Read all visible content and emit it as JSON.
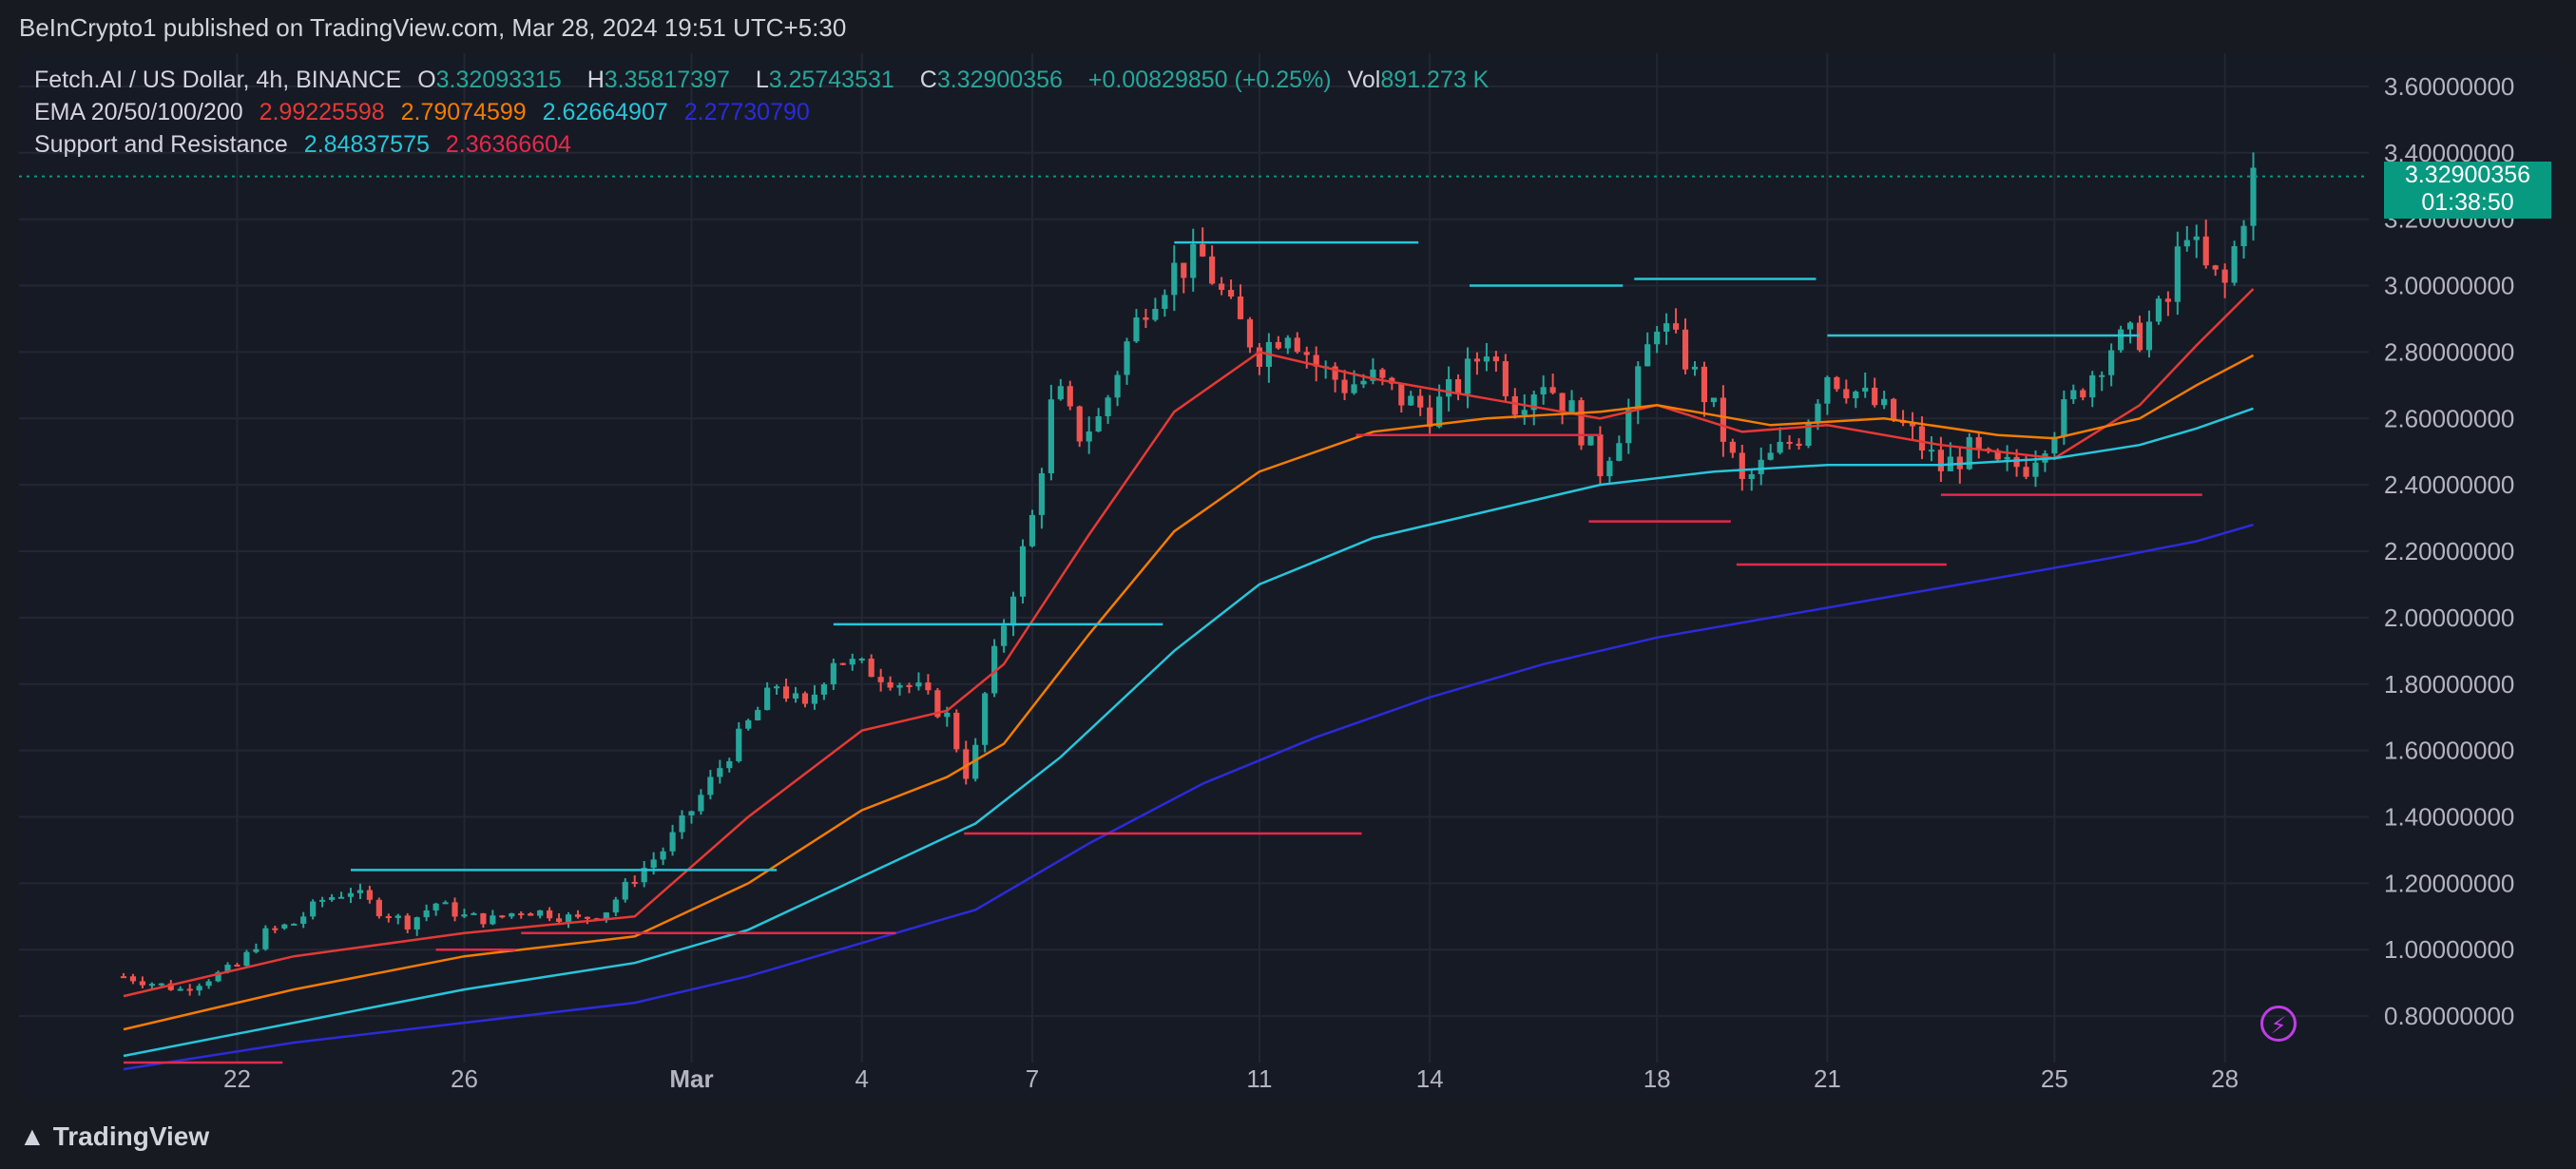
{
  "header": {
    "published": "BeInCrypto1 published on TradingView.com, Mar 28, 2024 19:51 UTC+5:30"
  },
  "legend": {
    "symbol": "Fetch.AI / US Dollar, 4h, BINANCE",
    "o_label": "O",
    "o": "3.32093315",
    "h_label": "H",
    "h": "3.35817397",
    "l_label": "L",
    "l": "3.25743531",
    "c_label": "C",
    "c": "3.32900356",
    "change": "+0.00829850 (+0.25%)",
    "vol_label": "Vol",
    "vol": "891.273 K",
    "ema_label": "EMA 20/50/100/200",
    "ema20": "2.99225598",
    "ema50": "2.79074599",
    "ema100": "2.62664907",
    "ema200": "2.27730790",
    "sr_label": "Support and Resistance",
    "sr1": "2.84837575",
    "sr2": "2.36366604"
  },
  "price_tag": {
    "price": "3.32900356",
    "countdown": "01:38:50"
  },
  "footer": {
    "brand": "TradingView"
  },
  "colors": {
    "up": "#26a69a",
    "down": "#ef5350",
    "ema20": "#e53935",
    "ema50": "#f57c00",
    "ema100": "#26c6da",
    "ema200": "#2b2bd9",
    "resistance": "#26c6da",
    "support": "#e5294a",
    "background": "#161a25"
  },
  "chart_data": {
    "type": "candlestick",
    "y_ticks": [
      "3.60000000",
      "3.40000000",
      "3.20000000",
      "3.00000000",
      "2.80000000",
      "2.60000000",
      "2.40000000",
      "2.20000000",
      "2.00000000",
      "1.80000000",
      "1.60000000",
      "1.40000000",
      "1.20000000",
      "1.00000000",
      "0.80000000"
    ],
    "ylim": [
      0.66,
      3.7
    ],
    "x_ticks": [
      {
        "label": "22",
        "day": -7
      },
      {
        "label": "26",
        "day": -3
      },
      {
        "label": "Mar",
        "day": 1
      },
      {
        "label": "4",
        "day": 4
      },
      {
        "label": "7",
        "day": 7
      },
      {
        "label": "11",
        "day": 11
      },
      {
        "label": "14",
        "day": 14
      },
      {
        "label": "18",
        "day": 18
      },
      {
        "label": "21",
        "day": 21
      },
      {
        "label": "25",
        "day": 25
      },
      {
        "label": "28",
        "day": 28
      }
    ],
    "xlim_days": [
      -9.0,
      30.5
    ],
    "last_day": 28.5,
    "close_path": [
      [
        -9.0,
        0.92
      ],
      [
        -8.0,
        0.88
      ],
      [
        -7.0,
        0.95
      ],
      [
        -6.5,
        1.05
      ],
      [
        -6.0,
        1.08
      ],
      [
        -5.5,
        1.15
      ],
      [
        -5.0,
        1.18
      ],
      [
        -4.5,
        1.12
      ],
      [
        -4.0,
        1.08
      ],
      [
        -3.5,
        1.14
      ],
      [
        -3.0,
        1.1
      ],
      [
        -2.5,
        1.09
      ],
      [
        -2.0,
        1.12
      ],
      [
        -1.5,
        1.11
      ],
      [
        -1.0,
        1.09
      ],
      [
        -0.5,
        1.12
      ],
      [
        0.0,
        1.22
      ],
      [
        0.5,
        1.3
      ],
      [
        1.0,
        1.42
      ],
      [
        1.5,
        1.55
      ],
      [
        2.0,
        1.68
      ],
      [
        2.5,
        1.8
      ],
      [
        3.0,
        1.72
      ],
      [
        3.5,
        1.88
      ],
      [
        4.0,
        1.85
      ],
      [
        4.5,
        1.82
      ],
      [
        5.0,
        1.78
      ],
      [
        5.5,
        1.7
      ],
      [
        5.9,
        1.5
      ],
      [
        6.2,
        1.8
      ],
      [
        6.6,
        2.05
      ],
      [
        7.0,
        2.3
      ],
      [
        7.4,
        2.7
      ],
      [
        7.8,
        2.55
      ],
      [
        8.2,
        2.6
      ],
      [
        8.6,
        2.8
      ],
      [
        9.0,
        2.95
      ],
      [
        9.5,
        3.05
      ],
      [
        10.0,
        3.08
      ],
      [
        10.5,
        2.92
      ],
      [
        11.0,
        2.8
      ],
      [
        11.5,
        2.88
      ],
      [
        12.0,
        2.76
      ],
      [
        12.5,
        2.7
      ],
      [
        13.0,
        2.72
      ],
      [
        13.5,
        2.66
      ],
      [
        14.0,
        2.62
      ],
      [
        14.5,
        2.7
      ],
      [
        15.0,
        2.82
      ],
      [
        15.5,
        2.65
      ],
      [
        16.0,
        2.72
      ],
      [
        16.5,
        2.62
      ],
      [
        17.0,
        2.45
      ],
      [
        17.5,
        2.62
      ],
      [
        18.0,
        2.9
      ],
      [
        18.5,
        2.78
      ],
      [
        19.0,
        2.62
      ],
      [
        19.5,
        2.4
      ],
      [
        20.0,
        2.48
      ],
      [
        20.5,
        2.55
      ],
      [
        21.0,
        2.74
      ],
      [
        21.5,
        2.68
      ],
      [
        22.0,
        2.62
      ],
      [
        22.5,
        2.55
      ],
      [
        23.0,
        2.45
      ],
      [
        23.5,
        2.5
      ],
      [
        24.0,
        2.45
      ],
      [
        24.5,
        2.46
      ],
      [
        25.0,
        2.58
      ],
      [
        25.5,
        2.7
      ],
      [
        26.0,
        2.82
      ],
      [
        26.5,
        2.85
      ],
      [
        27.0,
        2.95
      ],
      [
        27.3,
        3.2
      ],
      [
        27.6,
        3.05
      ],
      [
        28.0,
        3.0
      ],
      [
        28.3,
        3.2
      ],
      [
        28.5,
        3.33
      ]
    ],
    "ema": [
      {
        "name": "EMA 20",
        "color": "#e53935",
        "points": [
          [
            -9.0,
            0.86
          ],
          [
            -6.0,
            0.98
          ],
          [
            -3.0,
            1.05
          ],
          [
            0.0,
            1.1
          ],
          [
            2.0,
            1.4
          ],
          [
            4.0,
            1.66
          ],
          [
            5.5,
            1.72
          ],
          [
            6.5,
            1.86
          ],
          [
            8.0,
            2.25
          ],
          [
            9.5,
            2.62
          ],
          [
            11.0,
            2.8
          ],
          [
            13.0,
            2.72
          ],
          [
            15.0,
            2.66
          ],
          [
            17.0,
            2.6
          ],
          [
            18.0,
            2.64
          ],
          [
            19.5,
            2.56
          ],
          [
            21.0,
            2.58
          ],
          [
            23.0,
            2.52
          ],
          [
            25.0,
            2.48
          ],
          [
            26.5,
            2.64
          ],
          [
            27.5,
            2.82
          ],
          [
            28.5,
            2.99
          ]
        ]
      },
      {
        "name": "EMA 50",
        "color": "#f57c00",
        "points": [
          [
            -9.0,
            0.76
          ],
          [
            -6.0,
            0.88
          ],
          [
            -3.0,
            0.98
          ],
          [
            0.0,
            1.04
          ],
          [
            2.0,
            1.2
          ],
          [
            4.0,
            1.42
          ],
          [
            5.5,
            1.52
          ],
          [
            6.5,
            1.62
          ],
          [
            8.0,
            1.95
          ],
          [
            9.5,
            2.26
          ],
          [
            11.0,
            2.44
          ],
          [
            13.0,
            2.56
          ],
          [
            15.0,
            2.6
          ],
          [
            17.0,
            2.62
          ],
          [
            18.0,
            2.64
          ],
          [
            20.0,
            2.58
          ],
          [
            22.0,
            2.6
          ],
          [
            24.0,
            2.55
          ],
          [
            25.0,
            2.54
          ],
          [
            26.5,
            2.6
          ],
          [
            27.5,
            2.7
          ],
          [
            28.5,
            2.79
          ]
        ]
      },
      {
        "name": "EMA 100",
        "color": "#26c6da",
        "points": [
          [
            -9.0,
            0.68
          ],
          [
            -6.0,
            0.78
          ],
          [
            -3.0,
            0.88
          ],
          [
            0.0,
            0.96
          ],
          [
            2.0,
            1.06
          ],
          [
            4.0,
            1.22
          ],
          [
            6.0,
            1.38
          ],
          [
            7.5,
            1.58
          ],
          [
            9.5,
            1.9
          ],
          [
            11.0,
            2.1
          ],
          [
            13.0,
            2.24
          ],
          [
            15.0,
            2.32
          ],
          [
            17.0,
            2.4
          ],
          [
            19.0,
            2.44
          ],
          [
            21.0,
            2.46
          ],
          [
            23.0,
            2.46
          ],
          [
            25.0,
            2.48
          ],
          [
            26.5,
            2.52
          ],
          [
            27.5,
            2.57
          ],
          [
            28.5,
            2.63
          ]
        ]
      },
      {
        "name": "EMA 200",
        "color": "#2b2bd9",
        "points": [
          [
            -9.0,
            0.64
          ],
          [
            -6.0,
            0.72
          ],
          [
            -3.0,
            0.78
          ],
          [
            0.0,
            0.84
          ],
          [
            2.0,
            0.92
          ],
          [
            4.0,
            1.02
          ],
          [
            6.0,
            1.12
          ],
          [
            8.0,
            1.32
          ],
          [
            10.0,
            1.5
          ],
          [
            12.0,
            1.64
          ],
          [
            14.0,
            1.76
          ],
          [
            16.0,
            1.86
          ],
          [
            18.0,
            1.94
          ],
          [
            20.0,
            2.0
          ],
          [
            22.0,
            2.06
          ],
          [
            24.0,
            2.12
          ],
          [
            26.0,
            2.18
          ],
          [
            27.5,
            2.23
          ],
          [
            28.5,
            2.28
          ]
        ]
      }
    ],
    "resistance_lines": [
      {
        "from": -5.0,
        "to": 2.5,
        "y": 1.24
      },
      {
        "from": 3.5,
        "to": 9.3,
        "y": 1.98
      },
      {
        "from": 9.5,
        "to": 13.8,
        "y": 3.13
      },
      {
        "from": 14.7,
        "to": 17.4,
        "y": 3.0
      },
      {
        "from": 17.6,
        "to": 20.8,
        "y": 3.02
      },
      {
        "from": 21.0,
        "to": 26.5,
        "y": 2.85
      }
    ],
    "support_lines": [
      {
        "from": -9.0,
        "to": -6.2,
        "y": 0.66
      },
      {
        "from": -3.5,
        "to": -2.1,
        "y": 1.0
      },
      {
        "from": -2.0,
        "to": 4.6,
        "y": 1.05
      },
      {
        "from": 5.8,
        "to": 12.8,
        "y": 1.35
      },
      {
        "from": 12.7,
        "to": 17.0,
        "y": 2.55
      },
      {
        "from": 16.8,
        "to": 19.3,
        "y": 2.29
      },
      {
        "from": 19.4,
        "to": 23.1,
        "y": 2.16
      },
      {
        "from": 23.0,
        "to": 27.6,
        "y": 2.37
      }
    ],
    "current_price": 3.329
  }
}
